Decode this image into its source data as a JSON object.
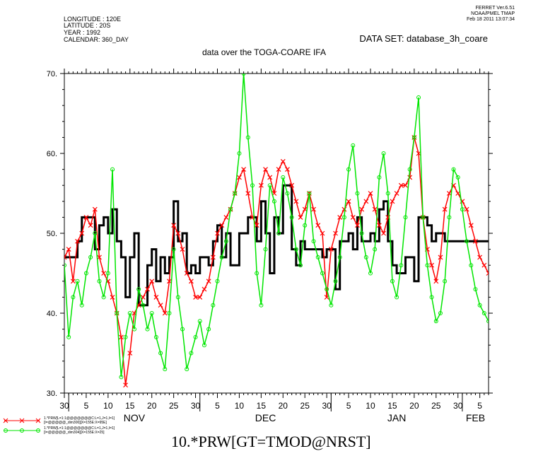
{
  "header": {
    "longitude": "LONGITUDE : 120E",
    "latitude": "LATITUDE : 20S",
    "year": "YEAR : 1992",
    "calendar": "CALENDAR: 360_DAY",
    "stamp_line1": "FERRET  Ver.6.51",
    "stamp_line2": "NOAA/PMEL TMAP",
    "stamp_line3": "Feb 18 2011 13:07:34",
    "dataset": "DATA SET: database_3h_coare",
    "subtitle": "data over the TOGA-COARE IFA"
  },
  "bottom_title": "10.*PRW[GT=TMOD@NRST]",
  "legend": [
    {
      "line1": "1.*PRW[L=1:1@@@@@@@C:L=1,J=1,I=1]",
      "line2": "[I=@@@@@_dim300][X=155E:X=95E]",
      "color": "#ff0000",
      "marker": "x"
    },
    {
      "line1": "1.*PRW[L=1:1@@@@@@@C:L=1,J=1,I=1]",
      "line2": "[I=@@@@@_dim304][X=155E:X=25]",
      "color": "#00e600",
      "marker": "o"
    }
  ],
  "chart_data": {
    "type": "line",
    "title": "data over the TOGA-COARE IFA",
    "xlabel": "",
    "ylabel": "",
    "ylim": [
      30,
      70
    ],
    "yticks": [
      "30.",
      "40.",
      "50.",
      "60.",
      "70."
    ],
    "xlim": [
      30,
      127
    ],
    "x_day_ticks": [
      "30",
      "5",
      "10",
      "15",
      "20",
      "25",
      "30",
      "5",
      "10",
      "15",
      "20",
      "25",
      "30",
      "5",
      "10",
      "15",
      "20",
      "25",
      "30",
      "5"
    ],
    "months": [
      "NOV",
      "DEC",
      "JAN",
      "FEB"
    ],
    "grid": false,
    "legend_position": "bottom-left",
    "series": [
      {
        "color": "#000000",
        "style": "step",
        "x": [
          30,
          33,
          34,
          37,
          38,
          39,
          40,
          41,
          42,
          43,
          44,
          45,
          46,
          47,
          49,
          50,
          51,
          52,
          53,
          54,
          55,
          56,
          57,
          58,
          59,
          60,
          61,
          63,
          64,
          65,
          66,
          67,
          68,
          70,
          71,
          72,
          74,
          75,
          76,
          77,
          78,
          79,
          80,
          82,
          83,
          84,
          85,
          86,
          87,
          88,
          89,
          90,
          92,
          93,
          95,
          96,
          97,
          98,
          100,
          101,
          102,
          103,
          104,
          105,
          106,
          108,
          110,
          111,
          113,
          114,
          115,
          116,
          117,
          118,
          119,
          120,
          121,
          122,
          124,
          125,
          126,
          127
        ],
        "y": [
          47,
          49,
          52,
          48,
          51,
          52,
          50,
          53,
          49,
          47,
          42,
          47,
          50,
          41,
          46,
          48,
          44,
          47,
          45,
          47,
          54,
          49,
          50,
          45,
          46,
          45,
          47,
          46,
          49,
          51,
          47,
          50,
          46,
          50,
          50,
          52,
          49,
          54,
          50,
          45,
          52,
          50,
          56,
          48,
          46,
          49,
          48,
          48,
          48,
          48,
          47,
          48,
          43,
          49,
          50,
          48,
          52,
          49,
          50,
          49,
          53,
          54,
          49,
          46,
          45,
          47,
          44,
          52,
          51,
          49,
          50,
          50,
          49,
          49,
          49,
          49,
          49,
          49,
          49,
          49,
          49,
          49
        ]
      },
      {
        "color": "#ff0000",
        "marker": "x",
        "x": [
          30,
          31,
          32,
          33,
          34,
          35,
          36,
          37,
          38,
          39,
          40,
          41,
          42,
          43,
          44,
          45,
          46,
          47,
          48,
          49,
          50,
          51,
          52,
          53,
          54,
          55,
          56,
          57,
          58,
          59,
          60,
          61,
          62,
          63,
          64,
          65,
          66,
          67,
          68,
          69,
          70,
          71,
          72,
          73,
          74,
          75,
          76,
          77,
          78,
          79,
          80,
          81,
          82,
          83,
          84,
          85,
          86,
          87,
          88,
          89,
          90,
          91,
          92,
          93,
          94,
          95,
          96,
          97,
          98,
          99,
          100,
          101,
          102,
          103,
          104,
          105,
          106,
          107,
          108,
          109,
          110,
          111,
          112,
          113,
          114,
          115,
          116,
          117,
          118,
          119,
          120,
          121,
          122,
          123,
          124,
          125,
          126,
          127
        ],
        "y": [
          47,
          48,
          44,
          49,
          50,
          52,
          51,
          53,
          47,
          45,
          44,
          42,
          40,
          37,
          31,
          35,
          40,
          41,
          42,
          43,
          44,
          42,
          41,
          40,
          44,
          51,
          50,
          48,
          45,
          44,
          42,
          42,
          43,
          44,
          47,
          50,
          51,
          52,
          53,
          55,
          57,
          58,
          55,
          52,
          51,
          56,
          58,
          57,
          55,
          58,
          59,
          58,
          56,
          54,
          52,
          53,
          55,
          53,
          51,
          50,
          42,
          48,
          50,
          52,
          53,
          54,
          52,
          51,
          53,
          54,
          55,
          53,
          51,
          50,
          52,
          54,
          55,
          56,
          56,
          57,
          62,
          60,
          52,
          48,
          46,
          44,
          47,
          53,
          55,
          56,
          55,
          54,
          53,
          51,
          49,
          47,
          46,
          45
        ]
      },
      {
        "color": "#00e600",
        "marker": "o",
        "x": [
          30,
          31,
          32,
          33,
          34,
          35,
          36,
          37,
          38,
          39,
          40,
          41,
          42,
          43,
          44,
          45,
          46,
          47,
          48,
          49,
          50,
          51,
          52,
          53,
          54,
          55,
          56,
          57,
          58,
          59,
          60,
          61,
          62,
          63,
          64,
          65,
          66,
          67,
          68,
          69,
          70,
          71,
          72,
          73,
          74,
          75,
          76,
          77,
          78,
          79,
          80,
          81,
          82,
          83,
          84,
          85,
          86,
          87,
          88,
          89,
          90,
          91,
          92,
          93,
          94,
          95,
          96,
          97,
          98,
          99,
          100,
          101,
          102,
          103,
          104,
          105,
          106,
          107,
          108,
          109,
          110,
          111,
          112,
          113,
          114,
          115,
          116,
          117,
          118,
          119,
          120,
          121,
          122,
          123,
          124,
          125,
          126,
          127
        ],
        "y": [
          46,
          37,
          42,
          44,
          41,
          45,
          47,
          50,
          44,
          42,
          45,
          58,
          40,
          32,
          37,
          40,
          38,
          43,
          41,
          38,
          40,
          37,
          35,
          33,
          40,
          48,
          42,
          38,
          33,
          35,
          37,
          39,
          36,
          38,
          41,
          44,
          47,
          49,
          53,
          55,
          60,
          70,
          62,
          56,
          45,
          41,
          48,
          56,
          54,
          50,
          57,
          55,
          52,
          48,
          46,
          51,
          55,
          49,
          47,
          45,
          43,
          41,
          44,
          47,
          52,
          58,
          61,
          55,
          50,
          47,
          45,
          48,
          57,
          60,
          55,
          44,
          42,
          46,
          52,
          58,
          62,
          67,
          52,
          46,
          42,
          39,
          40,
          44,
          52,
          58,
          57,
          53,
          49,
          46,
          43,
          41,
          40,
          39
        ]
      }
    ]
  }
}
